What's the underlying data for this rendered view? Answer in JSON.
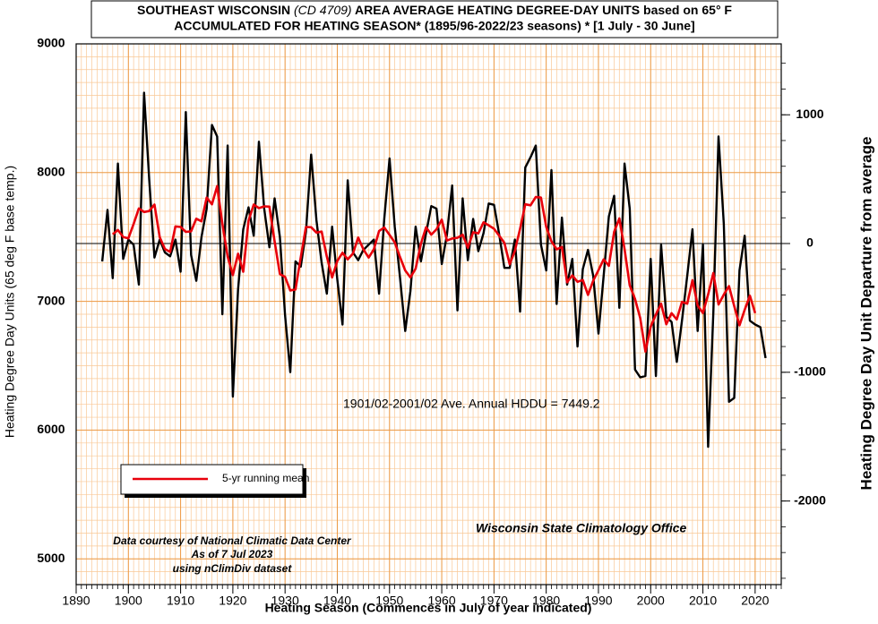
{
  "chart_data": {
    "type": "line",
    "title_parts": [
      "SOUTHEAST WISCONSIN ",
      "(CD 4709)",
      " AREA AVERAGE HEATING DEGREE-DAY UNITS based on 65° F"
    ],
    "subtitle": "ACCUMULATED FOR HEATING SEASON*  (1895/96-2022/23 seasons) * [1 July - 30 June]",
    "xlabel": "Heating Season (Commences in July of year indicated)",
    "ylabel": "Heating Degree Day Units (65 deg F base temp.)",
    "y2label": "Heating Degree Day Unit Departure from average",
    "average": 7449.2,
    "average_label": "1901/02-2001/02 Ave. Annual HDDU = 7449.2",
    "credits": [
      "Data courtesy of National Climatic Data Center",
      "As of 7 Jul 2023",
      "using nClimDiv dataset"
    ],
    "source": "Wisconsin State Climatology Office",
    "xlim": [
      1890,
      2025
    ],
    "xticks": [
      1890,
      1900,
      1910,
      1920,
      1930,
      1940,
      1950,
      1960,
      1970,
      1980,
      1990,
      2000,
      2010,
      2020
    ],
    "ylim": [
      4800,
      9000
    ],
    "yticks": [
      5000,
      6000,
      7000,
      8000,
      9000
    ],
    "y2lim": [
      -2649.2,
      1550.8
    ],
    "y2ticks": [
      -2000,
      -1000,
      0,
      1000
    ],
    "grid": true,
    "x": [
      1895,
      1896,
      1897,
      1898,
      1899,
      1900,
      1901,
      1902,
      1903,
      1904,
      1905,
      1906,
      1907,
      1908,
      1909,
      1910,
      1911,
      1912,
      1913,
      1914,
      1915,
      1916,
      1917,
      1918,
      1919,
      1920,
      1921,
      1922,
      1923,
      1924,
      1925,
      1926,
      1927,
      1928,
      1929,
      1930,
      1931,
      1932,
      1933,
      1934,
      1935,
      1936,
      1937,
      1938,
      1939,
      1940,
      1941,
      1942,
      1943,
      1944,
      1945,
      1946,
      1947,
      1948,
      1949,
      1950,
      1951,
      1952,
      1953,
      1954,
      1955,
      1956,
      1957,
      1958,
      1959,
      1960,
      1961,
      1962,
      1963,
      1964,
      1965,
      1966,
      1967,
      1968,
      1969,
      1970,
      1971,
      1972,
      1973,
      1974,
      1975,
      1976,
      1977,
      1978,
      1979,
      1980,
      1981,
      1982,
      1983,
      1984,
      1985,
      1986,
      1987,
      1988,
      1989,
      1990,
      1991,
      1992,
      1993,
      1994,
      1995,
      1996,
      1997,
      1998,
      1999,
      2000,
      2001,
      2002,
      2003,
      2004,
      2005,
      2006,
      2007,
      2008,
      2009,
      2010,
      2011,
      2012,
      2013,
      2014,
      2015,
      2016,
      2017,
      2018,
      2019,
      2020,
      2021,
      2022
    ],
    "series": [
      {
        "name": "Annual HDDU",
        "color": "#000000",
        "legend": false,
        "values": [
          7310,
          7710,
          7180,
          8070,
          7330,
          7480,
          7440,
          7130,
          8620,
          7940,
          7340,
          7480,
          7380,
          7350,
          7480,
          7230,
          8470,
          7360,
          7160,
          7500,
          7720,
          8370,
          8280,
          6900,
          8210,
          6260,
          7090,
          7560,
          7730,
          7510,
          8240,
          7720,
          7420,
          7800,
          7500,
          6890,
          6450,
          7310,
          7270,
          7540,
          8140,
          7630,
          7300,
          7060,
          7580,
          7170,
          6820,
          7940,
          7380,
          7320,
          7400,
          7440,
          7480,
          7060,
          7640,
          8110,
          7580,
          7190,
          6770,
          7080,
          7580,
          7310,
          7530,
          7740,
          7720,
          7290,
          7520,
          7900,
          6930,
          7800,
          7320,
          7640,
          7390,
          7530,
          7760,
          7750,
          7520,
          7260,
          7260,
          7480,
          6920,
          8040,
          8120,
          8210,
          7440,
          7240,
          8020,
          6980,
          7650,
          7130,
          7330,
          6650,
          7250,
          7400,
          7200,
          6750,
          7200,
          7660,
          7820,
          6950,
          8070,
          7720,
          6470,
          6410,
          6420,
          7330,
          6420,
          7440,
          6880,
          6840,
          6530,
          6850,
          7200,
          7560,
          6770,
          7440,
          5870,
          6910,
          8280,
          7600,
          6220,
          6250,
          7240,
          7510,
          6850,
          6820,
          6800,
          6560
        ]
      },
      {
        "name": "5-yr running mean",
        "color": "#e8000b",
        "legend": true,
        "values": [
          null,
          null,
          7520,
          7554,
          7500,
          7490,
          7600,
          7722,
          7694,
          7702,
          7752,
          7498,
          7406,
          7384,
          7582,
          7578,
          7540,
          7544,
          7642,
          7622,
          7806,
          7754,
          7896,
          7604,
          7348,
          7204,
          7370,
          7230,
          7626,
          7752,
          7724,
          7738,
          7736,
          7466,
          7212,
          7190,
          7084,
          7092,
          7342,
          7578,
          7576,
          7534,
          7542,
          7348,
          7186,
          7314,
          7378,
          7326,
          7372,
          7496,
          7404,
          7340,
          7404,
          7546,
          7574,
          7516,
          7458,
          7346,
          7240,
          7186,
          7254,
          7448,
          7576,
          7518,
          7560,
          7634,
          7472,
          7488,
          7494,
          7518,
          7416,
          7536,
          7528,
          7614,
          7590,
          7564,
          7510,
          7454,
          7288,
          7392,
          7564,
          7754,
          7746,
          7810,
          7806,
          7578,
          7466,
          7404,
          7422,
          7148,
          7202,
          7152,
          7166,
          7050,
          7160,
          7242,
          7326,
          7276,
          7540,
          7644,
          7406,
          7124,
          7018,
          6870,
          6610,
          6804,
          6898,
          6982,
          6822,
          6908,
          6860,
          6996,
          6982,
          7164,
          6968,
          6910,
          7054,
          7220,
          6976,
          7052,
          7118,
          6964,
          6814,
          6934,
          7044,
          6908,
          null,
          null
        ]
      }
    ]
  }
}
